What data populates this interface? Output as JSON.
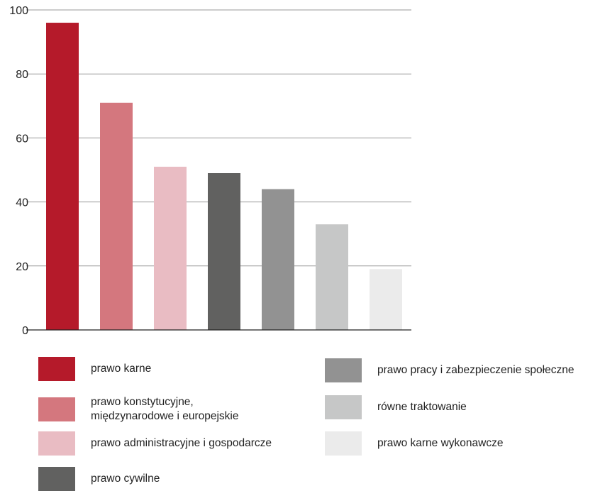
{
  "chart_data": {
    "type": "bar",
    "title": "",
    "xlabel": "",
    "ylabel": "",
    "ylim": [
      0,
      100
    ],
    "yticks": [
      "0",
      "20",
      "40",
      "60",
      "80",
      "100"
    ],
    "grid": true,
    "legend_position": "bottom",
    "categories": [
      "prawo karne",
      "prawo konstytucyjne, międzynarodowe i europejskie",
      "prawo administracyjne i gospodarcze",
      "prawo cywilne",
      "prawo pracy i zabezpieczenie społeczne",
      "równe traktowanie",
      "prawo karne wykonawcze"
    ],
    "values": [
      96,
      71,
      51,
      49,
      44,
      33,
      19
    ],
    "colors": [
      "#b51a2a",
      "#d4777e",
      "#e9bcc3",
      "#616160",
      "#929292",
      "#c6c7c7",
      "#ebebeb"
    ]
  },
  "legend": {
    "items": [
      {
        "label_line1": "prawo karne",
        "label_line2": ""
      },
      {
        "label_line1": "prawo konstytucyjne,",
        "label_line2": "międzynarodowe i europejskie"
      },
      {
        "label_line1": "prawo administracyjne i gospodarcze",
        "label_line2": ""
      },
      {
        "label_line1": "prawo cywilne",
        "label_line2": ""
      },
      {
        "label_line1": "prawo pracy i zabezpieczenie społeczne",
        "label_line2": ""
      },
      {
        "label_line1": "równe traktowanie",
        "label_line2": ""
      },
      {
        "label_line1": "prawo karne wykonawcze",
        "label_line2": ""
      }
    ]
  }
}
